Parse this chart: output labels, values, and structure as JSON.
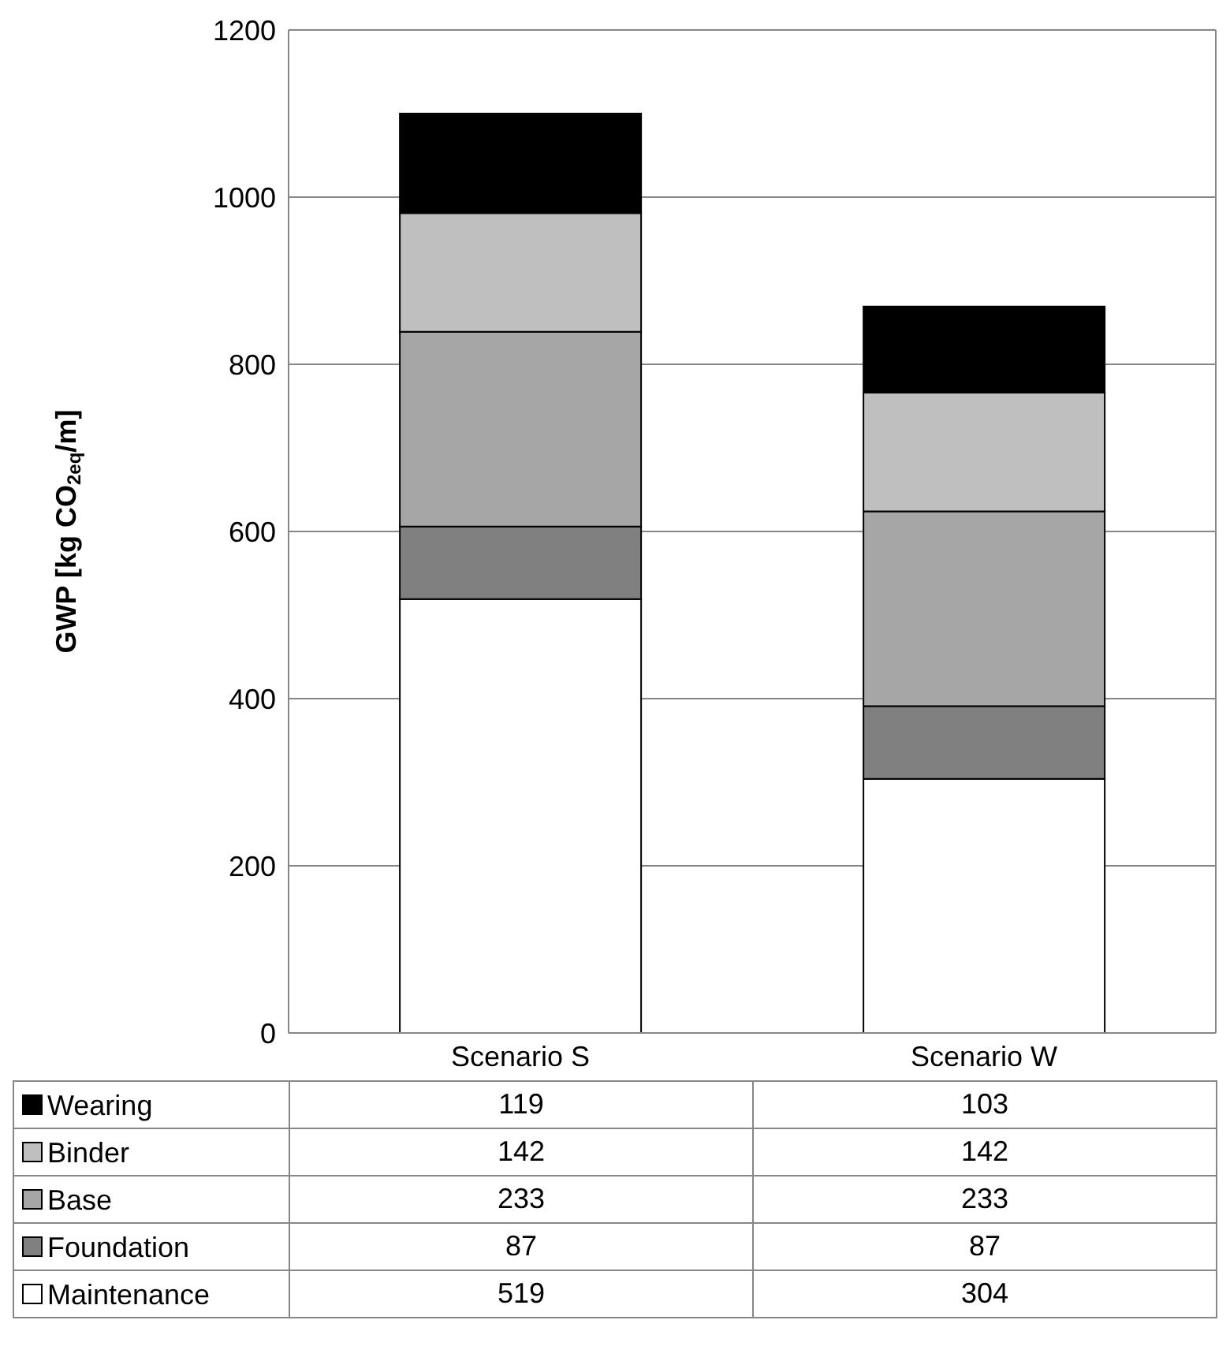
{
  "chart_data": {
    "type": "bar",
    "stacked": true,
    "ylabel": "GWP [kg CO$_{2eq}$/m]",
    "categories": [
      "Scenario S",
      "Scenario W"
    ],
    "series": [
      {
        "name": "Maintenance",
        "color": "#ffffff",
        "values": [
          519,
          304
        ]
      },
      {
        "name": "Foundation",
        "color": "#808080",
        "values": [
          87,
          87
        ]
      },
      {
        "name": "Base",
        "color": "#a6a6a6",
        "values": [
          233,
          233
        ]
      },
      {
        "name": "Binder",
        "color": "#bfbfbf",
        "values": [
          142,
          142
        ]
      },
      {
        "name": "Wearing",
        "color": "#000000",
        "values": [
          119,
          103
        ]
      }
    ],
    "ylim": [
      0,
      1200
    ],
    "yticks": [
      0,
      200,
      400,
      600,
      800,
      1000,
      1200
    ],
    "grid": "y",
    "legend": "bottom",
    "data_labels": true
  }
}
